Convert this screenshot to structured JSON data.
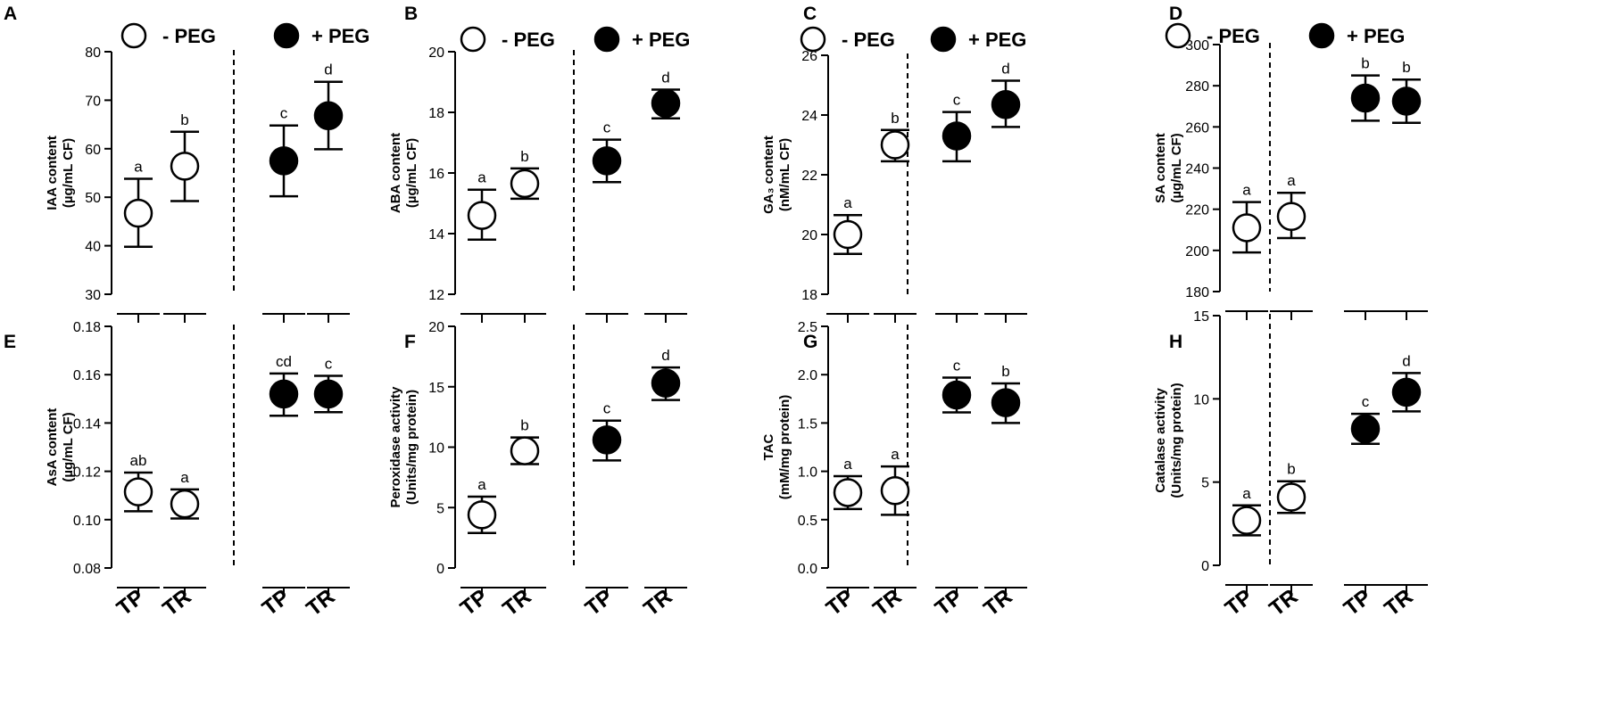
{
  "figure": {
    "legend": {
      "minus_label": "- PEG",
      "plus_label": "+ PEG"
    },
    "colors": {
      "axis": "#000000",
      "open_fill": "#ffffff",
      "filled_fill": "#000000"
    }
  },
  "chart_data": [
    {
      "panel": "A",
      "type": "scatter",
      "ylabel_lines": [
        "IAA content",
        "(µg/mL CF)"
      ],
      "ylim": [
        30,
        80
      ],
      "yticks": [
        30,
        40,
        50,
        60,
        70,
        80
      ],
      "ytick_labels": [
        "30",
        "40",
        "50",
        "60",
        "70",
        "80"
      ],
      "categories": [
        "TP",
        "TR",
        "TP",
        "TR"
      ],
      "series": [
        {
          "name": "- PEG",
          "points": [
            {
              "x": "TP",
              "mean": 46.7,
              "err_low": 39.8,
              "err_high": 53.8,
              "sig": "a"
            },
            {
              "x": "TR",
              "mean": 56.4,
              "err_low": 49.2,
              "err_high": 63.5,
              "sig": "b"
            }
          ]
        },
        {
          "name": "+ PEG",
          "points": [
            {
              "x": "TP",
              "mean": 57.5,
              "err_low": 50.2,
              "err_high": 64.8,
              "sig": "c"
            },
            {
              "x": "TR",
              "mean": 66.8,
              "err_low": 59.9,
              "err_high": 73.8,
              "sig": "d"
            }
          ]
        }
      ]
    },
    {
      "panel": "B",
      "type": "scatter",
      "ylabel_lines": [
        "ABA content",
        "(µg/mL CF)"
      ],
      "ylim": [
        12,
        20
      ],
      "yticks": [
        12,
        14,
        16,
        18,
        20
      ],
      "ytick_labels": [
        "12",
        "14",
        "16",
        "18",
        "20"
      ],
      "categories": [
        "TP",
        "TR",
        "TP",
        "TR"
      ],
      "series": [
        {
          "name": "- PEG",
          "points": [
            {
              "x": "TP",
              "mean": 14.6,
              "err_low": 13.8,
              "err_high": 15.45,
              "sig": "a"
            },
            {
              "x": "TR",
              "mean": 15.65,
              "err_low": 15.15,
              "err_high": 16.15,
              "sig": "b"
            }
          ]
        },
        {
          "name": "+ PEG",
          "points": [
            {
              "x": "TP",
              "mean": 16.4,
              "err_low": 15.7,
              "err_high": 17.1,
              "sig": "c"
            },
            {
              "x": "TR",
              "mean": 18.3,
              "err_low": 17.8,
              "err_high": 18.75,
              "sig": "d"
            }
          ]
        }
      ]
    },
    {
      "panel": "C",
      "type": "scatter",
      "ylabel_lines": [
        "GA₃ content",
        "(nM/mL CF)"
      ],
      "ylim": [
        18,
        26
      ],
      "yticks": [
        18,
        20,
        22,
        24,
        26
      ],
      "ytick_labels": [
        "18",
        "20",
        "22",
        "24",
        "26"
      ],
      "categories": [
        "TP",
        "TR",
        "TP",
        "TR"
      ],
      "series": [
        {
          "name": "- PEG",
          "points": [
            {
              "x": "TP",
              "mean": 20.0,
              "err_low": 19.35,
              "err_high": 20.65,
              "sig": "a"
            },
            {
              "x": "TR",
              "mean": 23.0,
              "err_low": 22.45,
              "err_high": 23.5,
              "sig": "b"
            }
          ]
        },
        {
          "name": "+ PEG",
          "points": [
            {
              "x": "TP",
              "mean": 23.3,
              "err_low": 22.45,
              "err_high": 24.1,
              "sig": "c"
            },
            {
              "x": "TR",
              "mean": 24.35,
              "err_low": 23.6,
              "err_high": 25.15,
              "sig": "d"
            }
          ]
        }
      ]
    },
    {
      "panel": "D",
      "type": "scatter",
      "ylabel_lines": [
        "SA content",
        "(µg/mL CF)"
      ],
      "ylim": [
        180,
        300
      ],
      "yticks": [
        180,
        200,
        220,
        240,
        260,
        280,
        300
      ],
      "ytick_labels": [
        "180",
        "200",
        "220",
        "240",
        "260",
        "280",
        "300"
      ],
      "categories": [
        "TP",
        "TR",
        "TP",
        "TR"
      ],
      "series": [
        {
          "name": "- PEG",
          "points": [
            {
              "x": "TP",
              "mean": 211,
              "err_low": 199,
              "err_high": 223.5,
              "sig": "a"
            },
            {
              "x": "TR",
              "mean": 216.5,
              "err_low": 206,
              "err_high": 228,
              "sig": "a"
            }
          ]
        },
        {
          "name": "+ PEG",
          "points": [
            {
              "x": "TP",
              "mean": 274,
              "err_low": 263,
              "err_high": 285,
              "sig": "b"
            },
            {
              "x": "TR",
              "mean": 272.5,
              "err_low": 262,
              "err_high": 283,
              "sig": "b"
            }
          ]
        }
      ]
    },
    {
      "panel": "E",
      "type": "scatter",
      "ylabel_lines": [
        "AsA content",
        "(µg/mL CF)"
      ],
      "ylim": [
        0.08,
        0.18
      ],
      "yticks": [
        0.08,
        0.1,
        0.12,
        0.14,
        0.16,
        0.18
      ],
      "ytick_labels": [
        "0.08",
        "0.10",
        "0.12",
        "0.14",
        "0.16",
        "0.18"
      ],
      "categories": [
        "TP",
        "TR",
        "TP",
        "TR"
      ],
      "series": [
        {
          "name": "- PEG",
          "points": [
            {
              "x": "TP",
              "mean": 0.1115,
              "err_low": 0.1035,
              "err_high": 0.1195,
              "sig": "ab"
            },
            {
              "x": "TR",
              "mean": 0.1065,
              "err_low": 0.1005,
              "err_high": 0.1125,
              "sig": "a"
            }
          ]
        },
        {
          "name": "+ PEG",
          "points": [
            {
              "x": "TP",
              "mean": 0.152,
              "err_low": 0.143,
              "err_high": 0.1605,
              "sig": "cd"
            },
            {
              "x": "TR",
              "mean": 0.152,
              "err_low": 0.1445,
              "err_high": 0.1595,
              "sig": "c"
            }
          ]
        }
      ]
    },
    {
      "panel": "F",
      "type": "scatter",
      "ylabel_lines": [
        "Peroxidase activity",
        "(Units/mg protein)"
      ],
      "ylim": [
        0,
        20
      ],
      "yticks": [
        0,
        5,
        10,
        15,
        20
      ],
      "ytick_labels": [
        "0",
        "5",
        "10",
        "15",
        "20"
      ],
      "categories": [
        "TP",
        "TR",
        "TP",
        "TR"
      ],
      "series": [
        {
          "name": "- PEG",
          "points": [
            {
              "x": "TP",
              "mean": 4.4,
              "err_low": 2.9,
              "err_high": 5.9,
              "sig": "a"
            },
            {
              "x": "TR",
              "mean": 9.7,
              "err_low": 8.6,
              "err_high": 10.8,
              "sig": "b"
            }
          ]
        },
        {
          "name": "+ PEG",
          "points": [
            {
              "x": "TP",
              "mean": 10.6,
              "err_low": 8.9,
              "err_high": 12.2,
              "sig": "c"
            },
            {
              "x": "TR",
              "mean": 15.3,
              "err_low": 13.9,
              "err_high": 16.6,
              "sig": "d"
            }
          ]
        }
      ]
    },
    {
      "panel": "G",
      "type": "scatter",
      "ylabel_lines": [
        "TAC",
        "(mM/mg protein)"
      ],
      "ylim": [
        0,
        2.5
      ],
      "yticks": [
        0,
        0.5,
        1.0,
        1.5,
        2.0,
        2.5
      ],
      "ytick_labels": [
        "0.0",
        "0.5",
        "1.0",
        "1.5",
        "2.0",
        "2.5"
      ],
      "categories": [
        "TP",
        "TR",
        "TP",
        "TR"
      ],
      "series": [
        {
          "name": "- PEG",
          "points": [
            {
              "x": "TP",
              "mean": 0.78,
              "err_low": 0.61,
              "err_high": 0.95,
              "sig": "a"
            },
            {
              "x": "TR",
              "mean": 0.8,
              "err_low": 0.55,
              "err_high": 1.05,
              "sig": "a"
            }
          ]
        },
        {
          "name": "+ PEG",
          "points": [
            {
              "x": "TP",
              "mean": 1.79,
              "err_low": 1.61,
              "err_high": 1.97,
              "sig": "c"
            },
            {
              "x": "TR",
              "mean": 1.71,
              "err_low": 1.5,
              "err_high": 1.91,
              "sig": "b"
            }
          ]
        }
      ]
    },
    {
      "panel": "H",
      "type": "scatter",
      "ylabel_lines": [
        "Catalase activity",
        "(Units/mg protein)"
      ],
      "ylim": [
        0,
        15
      ],
      "yticks": [
        0,
        5,
        10,
        15
      ],
      "ytick_labels": [
        "0",
        "5",
        "10",
        "15"
      ],
      "categories": [
        "TP",
        "TR",
        "TP",
        "TR"
      ],
      "series": [
        {
          "name": "- PEG",
          "points": [
            {
              "x": "TP",
              "mean": 2.7,
              "err_low": 1.8,
              "err_high": 3.6,
              "sig": "a"
            },
            {
              "x": "TR",
              "mean": 4.1,
              "err_low": 3.15,
              "err_high": 5.05,
              "sig": "b"
            }
          ]
        },
        {
          "name": "+ PEG",
          "points": [
            {
              "x": "TP",
              "mean": 8.2,
              "err_low": 7.3,
              "err_high": 9.1,
              "sig": "c"
            },
            {
              "x": "TR",
              "mean": 10.4,
              "err_low": 9.25,
              "err_high": 11.55,
              "sig": "d"
            }
          ]
        }
      ]
    }
  ]
}
